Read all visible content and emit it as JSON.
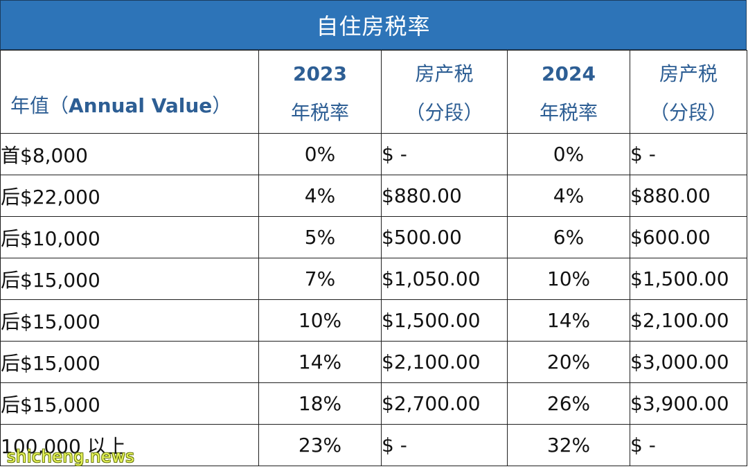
{
  "title": "自住房税率",
  "colors": {
    "banner": "#2d74b8",
    "header_text": "#2d5e94",
    "watermark": "#e8f55a"
  },
  "header": {
    "first_col_zh": "年值（",
    "first_col_en": "Annual Value",
    "first_col_close": "）",
    "col2_year": "2023",
    "col2_label": "年税率",
    "col3_line1": "房产税",
    "col3_line2": "（分段）",
    "col4_year": "2024",
    "col4_label": "年税率",
    "col5_line1": "房产税",
    "col5_line2": "（分段）"
  },
  "rows": [
    [
      "首$8,000",
      "0%",
      "$ -",
      "0%",
      "$ -"
    ],
    [
      "后$22,000",
      "4%",
      "$880.00",
      "4%",
      "$880.00"
    ],
    [
      "后$10,000",
      "5%",
      "$500.00",
      "6%",
      "$600.00"
    ],
    [
      "后$15,000",
      "7%",
      "$1,050.00",
      "10%",
      "$1,500.00"
    ],
    [
      "后$15,000",
      "10%",
      "$1,500.00",
      "14%",
      "$2,100.00"
    ],
    [
      "后$15,000",
      "14%",
      "$2,100.00",
      "20%",
      "$3,000.00"
    ],
    [
      "后$15,000",
      "18%",
      "$2,700.00",
      "26%",
      "$3,900.00"
    ],
    [
      "100,000 以上",
      "23%",
      "$ -",
      "32%",
      "$ -"
    ]
  ],
  "watermark": "shicheng.news"
}
